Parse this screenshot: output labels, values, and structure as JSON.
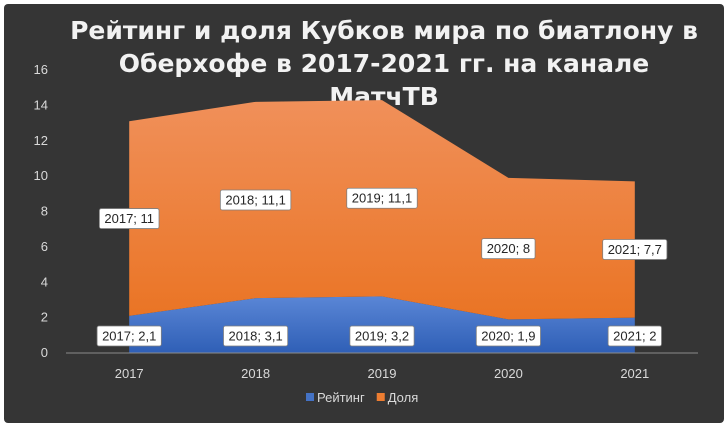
{
  "chart_data": {
    "type": "area",
    "stacked": true,
    "title_lines": [
      "Рейтинг и доля Кубков мира по биатлону в",
      "Оберхофе в 2017-2021 гг. на канале",
      "МатчТВ"
    ],
    "categories": [
      "2017",
      "2018",
      "2019",
      "2020",
      "2021"
    ],
    "series": [
      {
        "name": "Рейтинг",
        "color": "#4472c4",
        "values": [
          2.1,
          3.1,
          3.2,
          1.9,
          2
        ],
        "labels": [
          "2017; 2,1",
          "2018; 3,1",
          "2019; 3,2",
          "2020; 1,9",
          "2021; 2"
        ]
      },
      {
        "name": "Доля",
        "color": "#ed7d31",
        "values": [
          11,
          11.1,
          11.1,
          8,
          7.7
        ],
        "labels": [
          "2017; 11",
          "2018; 11,1",
          "2019; 11,1",
          "2020; 8",
          "2021; 7,7"
        ]
      }
    ],
    "y_ticks": [
      "0",
      "2",
      "4",
      "6",
      "8",
      "10",
      "12",
      "14",
      "16"
    ],
    "ylim": [
      0,
      16
    ],
    "grid": false,
    "legend": "bottom"
  }
}
